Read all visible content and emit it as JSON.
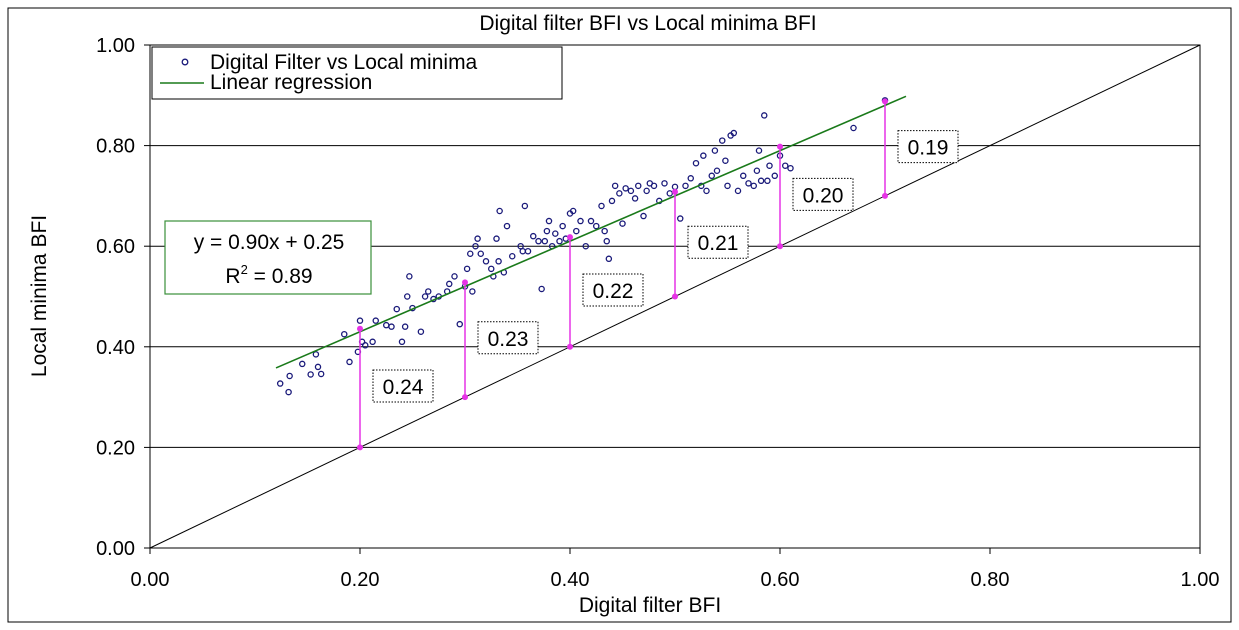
{
  "chart_data": {
    "type": "scatter",
    "title": "Digital filter BFI vs Local minima BFI",
    "xlabel": "Digital filter BFI",
    "ylabel": "Local minima BFI",
    "xlim": [
      0,
      1
    ],
    "ylim": [
      0,
      1
    ],
    "x_ticks": [
      "0.00",
      "0.20",
      "0.40",
      "0.60",
      "0.80",
      "1.00"
    ],
    "y_ticks": [
      "0.00",
      "0.20",
      "0.40",
      "0.60",
      "0.80",
      "1.00"
    ],
    "grid": "horizontal",
    "legend_placement": "top-left",
    "legend": {
      "scatter_label": "Digital Filter vs Local minima",
      "line_label": "Linear regression"
    },
    "colors": {
      "points": "#1a1a7a",
      "regression": "#1a7a1a",
      "differences": "#e633e6",
      "equation_border": "#3a8f3a"
    },
    "equation": {
      "line1": "y = 0.90x + 0.25",
      "r_prefix": "R",
      "r_sup": "2",
      "r_suffix": " = 0.89"
    },
    "regression": {
      "slope": 0.9,
      "intercept": 0.25,
      "x_start": 0.12,
      "x_end": 0.72
    },
    "reference_line": {
      "from": [
        0,
        0
      ],
      "to": [
        1,
        1
      ]
    },
    "differences": [
      {
        "x": 0.2,
        "y_low": 0.2,
        "y_high": 0.436,
        "label": "0.24"
      },
      {
        "x": 0.3,
        "y_low": 0.3,
        "y_high": 0.528,
        "label": "0.23"
      },
      {
        "x": 0.4,
        "y_low": 0.4,
        "y_high": 0.618,
        "label": "0.22"
      },
      {
        "x": 0.5,
        "y_low": 0.5,
        "y_high": 0.708,
        "label": "0.21"
      },
      {
        "x": 0.6,
        "y_low": 0.6,
        "y_high": 0.798,
        "label": "0.20"
      },
      {
        "x": 0.7,
        "y_low": 0.7,
        "y_high": 0.888,
        "label": "0.19"
      }
    ],
    "points": [
      [
        0.124,
        0.327
      ],
      [
        0.132,
        0.31
      ],
      [
        0.133,
        0.342
      ],
      [
        0.145,
        0.366
      ],
      [
        0.153,
        0.345
      ],
      [
        0.158,
        0.385
      ],
      [
        0.16,
        0.36
      ],
      [
        0.163,
        0.346
      ],
      [
        0.185,
        0.425
      ],
      [
        0.19,
        0.37
      ],
      [
        0.198,
        0.39
      ],
      [
        0.2,
        0.452
      ],
      [
        0.202,
        0.41
      ],
      [
        0.205,
        0.403
      ],
      [
        0.212,
        0.41
      ],
      [
        0.215,
        0.452
      ],
      [
        0.225,
        0.443
      ],
      [
        0.23,
        0.44
      ],
      [
        0.235,
        0.475
      ],
      [
        0.24,
        0.41
      ],
      [
        0.243,
        0.44
      ],
      [
        0.245,
        0.5
      ],
      [
        0.247,
        0.54
      ],
      [
        0.25,
        0.477
      ],
      [
        0.258,
        0.43
      ],
      [
        0.262,
        0.5
      ],
      [
        0.265,
        0.51
      ],
      [
        0.27,
        0.495
      ],
      [
        0.275,
        0.5
      ],
      [
        0.283,
        0.51
      ],
      [
        0.285,
        0.525
      ],
      [
        0.29,
        0.54
      ],
      [
        0.295,
        0.445
      ],
      [
        0.3,
        0.52
      ],
      [
        0.302,
        0.555
      ],
      [
        0.305,
        0.585
      ],
      [
        0.307,
        0.51
      ],
      [
        0.31,
        0.6
      ],
      [
        0.312,
        0.615
      ],
      [
        0.315,
        0.585
      ],
      [
        0.32,
        0.57
      ],
      [
        0.325,
        0.555
      ],
      [
        0.327,
        0.54
      ],
      [
        0.33,
        0.615
      ],
      [
        0.332,
        0.57
      ],
      [
        0.333,
        0.67
      ],
      [
        0.337,
        0.548
      ],
      [
        0.34,
        0.64
      ],
      [
        0.345,
        0.58
      ],
      [
        0.353,
        0.6
      ],
      [
        0.355,
        0.59
      ],
      [
        0.357,
        0.68
      ],
      [
        0.36,
        0.59
      ],
      [
        0.365,
        0.62
      ],
      [
        0.37,
        0.61
      ],
      [
        0.373,
        0.515
      ],
      [
        0.376,
        0.61
      ],
      [
        0.378,
        0.63
      ],
      [
        0.38,
        0.65
      ],
      [
        0.383,
        0.6
      ],
      [
        0.386,
        0.625
      ],
      [
        0.39,
        0.61
      ],
      [
        0.393,
        0.64
      ],
      [
        0.396,
        0.615
      ],
      [
        0.4,
        0.665
      ],
      [
        0.403,
        0.67
      ],
      [
        0.406,
        0.63
      ],
      [
        0.41,
        0.65
      ],
      [
        0.415,
        0.6
      ],
      [
        0.42,
        0.65
      ],
      [
        0.425,
        0.64
      ],
      [
        0.43,
        0.68
      ],
      [
        0.433,
        0.63
      ],
      [
        0.435,
        0.61
      ],
      [
        0.437,
        0.575
      ],
      [
        0.44,
        0.69
      ],
      [
        0.443,
        0.72
      ],
      [
        0.447,
        0.705
      ],
      [
        0.45,
        0.645
      ],
      [
        0.453,
        0.715
      ],
      [
        0.458,
        0.71
      ],
      [
        0.462,
        0.695
      ],
      [
        0.465,
        0.72
      ],
      [
        0.47,
        0.66
      ],
      [
        0.473,
        0.71
      ],
      [
        0.476,
        0.725
      ],
      [
        0.48,
        0.72
      ],
      [
        0.485,
        0.69
      ],
      [
        0.49,
        0.725
      ],
      [
        0.495,
        0.705
      ],
      [
        0.5,
        0.718
      ],
      [
        0.505,
        0.655
      ],
      [
        0.51,
        0.72
      ],
      [
        0.515,
        0.735
      ],
      [
        0.52,
        0.765
      ],
      [
        0.525,
        0.72
      ],
      [
        0.527,
        0.78
      ],
      [
        0.53,
        0.71
      ],
      [
        0.535,
        0.74
      ],
      [
        0.538,
        0.79
      ],
      [
        0.54,
        0.75
      ],
      [
        0.545,
        0.81
      ],
      [
        0.548,
        0.77
      ],
      [
        0.55,
        0.72
      ],
      [
        0.553,
        0.82
      ],
      [
        0.556,
        0.825
      ],
      [
        0.56,
        0.71
      ],
      [
        0.565,
        0.74
      ],
      [
        0.57,
        0.725
      ],
      [
        0.575,
        0.72
      ],
      [
        0.578,
        0.75
      ],
      [
        0.58,
        0.79
      ],
      [
        0.582,
        0.73
      ],
      [
        0.585,
        0.86
      ],
      [
        0.588,
        0.73
      ],
      [
        0.59,
        0.76
      ],
      [
        0.595,
        0.74
      ],
      [
        0.6,
        0.78
      ],
      [
        0.605,
        0.76
      ],
      [
        0.61,
        0.755
      ],
      [
        0.67,
        0.835
      ],
      [
        0.7,
        0.89
      ]
    ]
  }
}
